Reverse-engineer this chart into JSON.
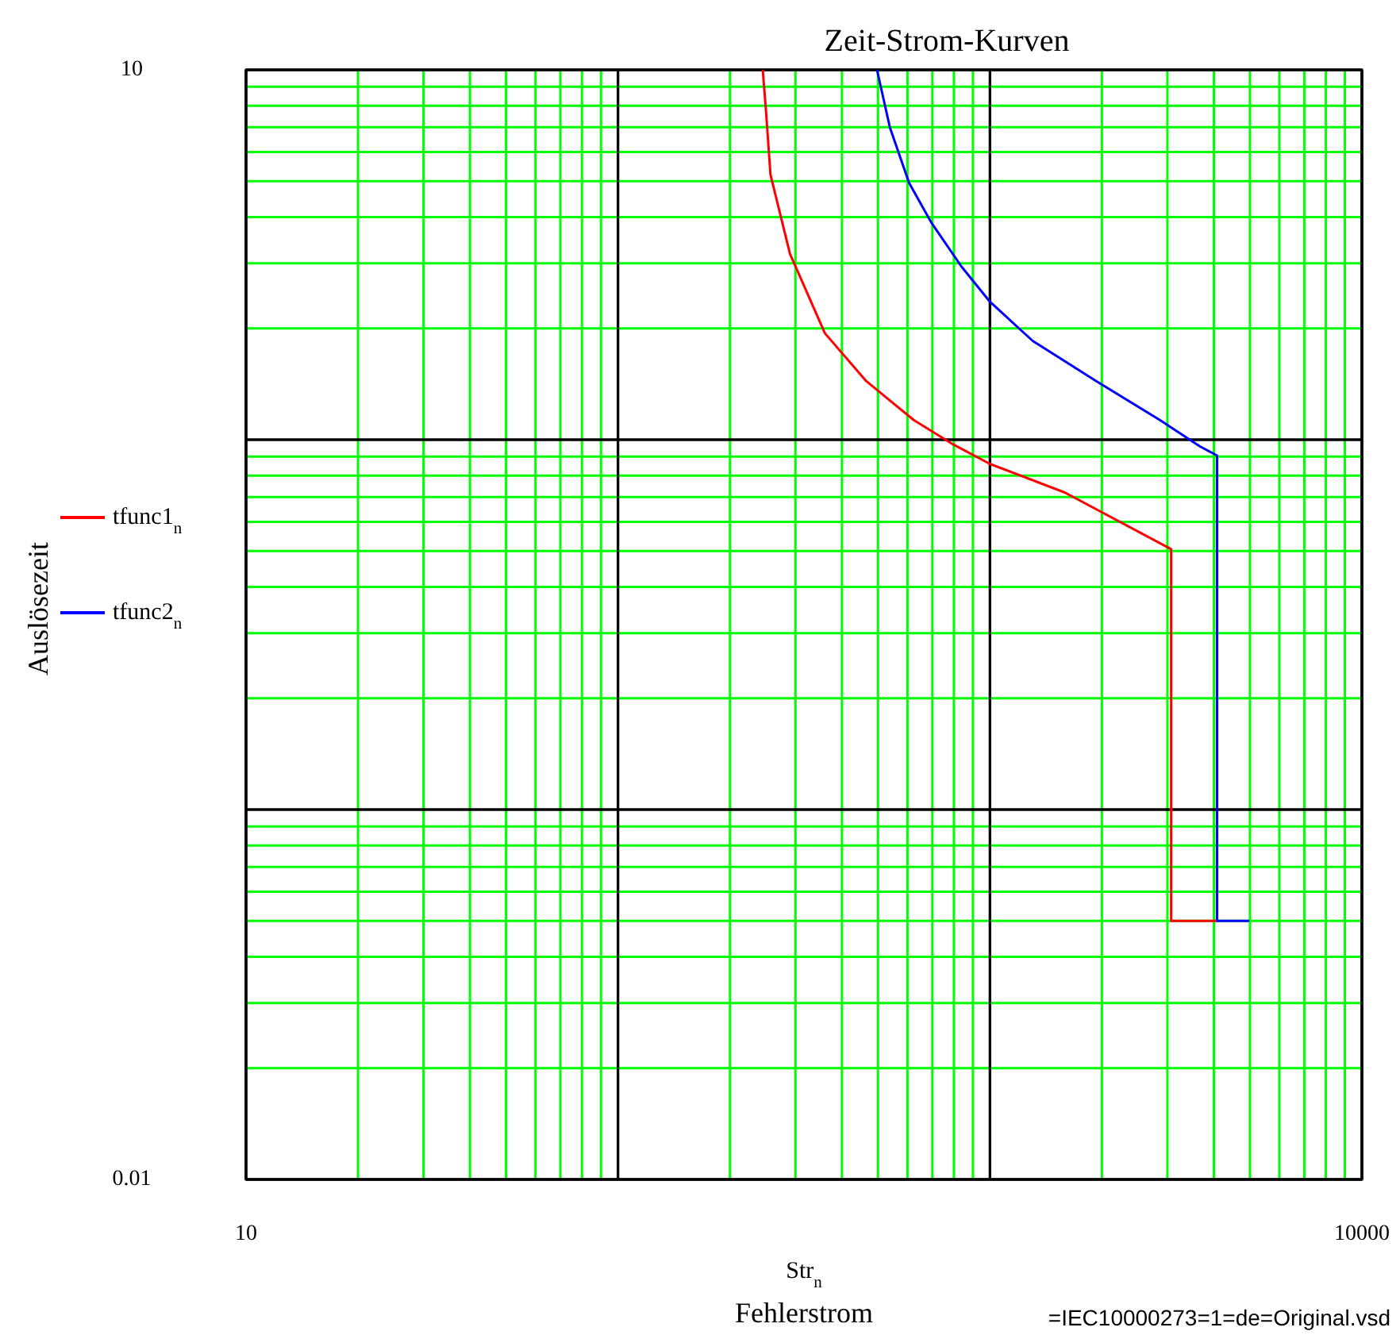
{
  "chart_data": {
    "type": "line",
    "title": "Zeit-Strom-Kurven",
    "xlabel": "Fehlerstrom",
    "ylabel": "Auslösezeit",
    "annotations": [
      "Str$_{n}$",
      "=IEC10000273=1=de=Original.vsd"
    ],
    "log": "xy",
    "grid": true,
    "legend": "left",
    "marker": "none",
    "line_style": "solid",
    "xlim": [
      10,
      10000
    ],
    "ylim": [
      0.01,
      10
    ],
    "xticks": [
      10,
      {
        "value": 20,
        "label": null
      },
      {
        "value": 30,
        "label": null
      },
      {
        "value": 40,
        "label": null
      },
      {
        "value": 50,
        "label": null
      },
      {
        "value": 60,
        "label": null
      },
      {
        "value": 70,
        "label": null
      },
      {
        "value": 80,
        "label": null
      },
      {
        "value": 90,
        "label": null
      },
      {
        "value": 100,
        "label": null
      },
      {
        "value": 200,
        "label": null
      },
      {
        "value": 300,
        "label": null
      },
      {
        "value": 400,
        "label": null
      },
      {
        "value": 500,
        "label": null
      },
      {
        "value": 600,
        "label": null
      },
      {
        "value": 700,
        "label": null
      },
      {
        "value": 800,
        "label": null
      },
      {
        "value": 900,
        "label": null
      },
      {
        "value": 1000,
        "label": null
      },
      {
        "value": 2000,
        "label": null
      },
      {
        "value": 3000,
        "label": null
      },
      {
        "value": 4000,
        "label": null
      },
      {
        "value": 5000,
        "label": null
      },
      {
        "value": 6000,
        "label": null
      },
      {
        "value": 7000,
        "label": null
      },
      {
        "value": 8000,
        "label": null
      },
      {
        "value": 9000,
        "label": null
      },
      10000
    ],
    "yticks": [
      0.01,
      {
        "value": 0.02,
        "label": null
      },
      {
        "value": 0.03,
        "label": null
      },
      {
        "value": 0.04,
        "label": null
      },
      {
        "value": 0.05,
        "label": null
      },
      {
        "value": 0.06,
        "label": null
      },
      {
        "value": 0.07,
        "label": null
      },
      {
        "value": 0.08,
        "label": null
      },
      {
        "value": 0.09,
        "label": null
      },
      {
        "value": 0.1,
        "label": null
      },
      {
        "value": 0.2,
        "label": null
      },
      {
        "value": 0.3,
        "label": null
      },
      {
        "value": 0.4,
        "label": null
      },
      {
        "value": 0.5,
        "label": null
      },
      {
        "value": 0.6,
        "label": null
      },
      {
        "value": 0.7,
        "label": null
      },
      {
        "value": 0.8,
        "label": null
      },
      {
        "value": 0.9,
        "label": null
      },
      {
        "value": 1,
        "label": null
      },
      {
        "value": 2,
        "label": null
      },
      {
        "value": 3,
        "label": null
      },
      {
        "value": 4,
        "label": null
      },
      {
        "value": 5,
        "label": null
      },
      {
        "value": 6,
        "label": null
      },
      {
        "value": 7,
        "label": null
      },
      {
        "value": 8,
        "label": null
      },
      {
        "value": 9,
        "label": null
      },
      10
    ],
    "series": [
      {
        "name": "tfunc1$_{n}$",
        "color": "#ff0000",
        "x": [
          245,
          250,
          257,
          290,
          360,
          465,
          624,
          798,
          1000,
          1589,
          3070,
          3070,
          4080
        ],
        "values": [
          10,
          7.73,
          5.21,
          3.18,
          1.94,
          1.44,
          1.13,
          0.97,
          0.86,
          0.72,
          0.506,
          0.05,
          0.05
        ]
      },
      {
        "name": "tfunc2$_{n}$",
        "color": "#0000ff",
        "x": [
          497,
          538,
          606,
          695,
          838,
          1000,
          1303,
          1932,
          2864,
          3664,
          4080,
          4080,
          4980
        ],
        "values": [
          10,
          7,
          4.95,
          3.87,
          2.94,
          2.36,
          1.85,
          1.44,
          1.13,
          0.96,
          0.906,
          0.05,
          0.05
        ]
      }
    ]
  }
}
